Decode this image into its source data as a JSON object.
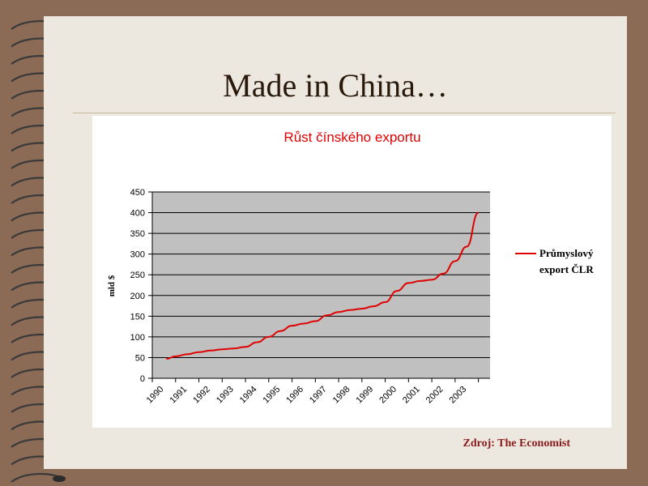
{
  "slide": {
    "title": "Made in China…",
    "source": "Zdroj: The Economist"
  },
  "colors": {
    "background": "#8b6b56",
    "slide": "#ede8df",
    "plot_area": "#c0c0c0",
    "line": "#e00000",
    "chart_title": "#e00000",
    "source": "#8b1a1a"
  },
  "chart_data": {
    "type": "line",
    "title": "Růst čínského exportu",
    "xlabel": "",
    "ylabel": "mld $",
    "categories": [
      "1990",
      "1991",
      "1992",
      "1993",
      "1994",
      "1995",
      "1996",
      "1997",
      "1998",
      "1999",
      "2000",
      "2001",
      "2002",
      "2003"
    ],
    "yticks": [
      0,
      50,
      100,
      150,
      200,
      250,
      300,
      350,
      400,
      450
    ],
    "ylim": [
      0,
      450
    ],
    "grid": true,
    "legend_position": "right",
    "series": [
      {
        "name": "Průmyslový export ČLR",
        "color": "#e00000",
        "x": [
          1990.1,
          1990.5,
          1991.0,
          1991.5,
          1992.0,
          1992.5,
          1993.0,
          1993.5,
          1994.0,
          1994.5,
          1995.0,
          1995.5,
          1996.0,
          1996.5,
          1997.0,
          1997.5,
          1998.0,
          1998.5,
          1999.0,
          1999.5,
          2000.0,
          2000.5,
          2001.0,
          2001.5,
          2002.0,
          2002.5,
          2003.0,
          2003.5
        ],
        "values": [
          47,
          53,
          58,
          63,
          67,
          70,
          72,
          76,
          87,
          100,
          114,
          127,
          132,
          138,
          152,
          160,
          165,
          168,
          174,
          184,
          211,
          230,
          235,
          238,
          253,
          283,
          318,
          400
        ]
      }
    ]
  }
}
